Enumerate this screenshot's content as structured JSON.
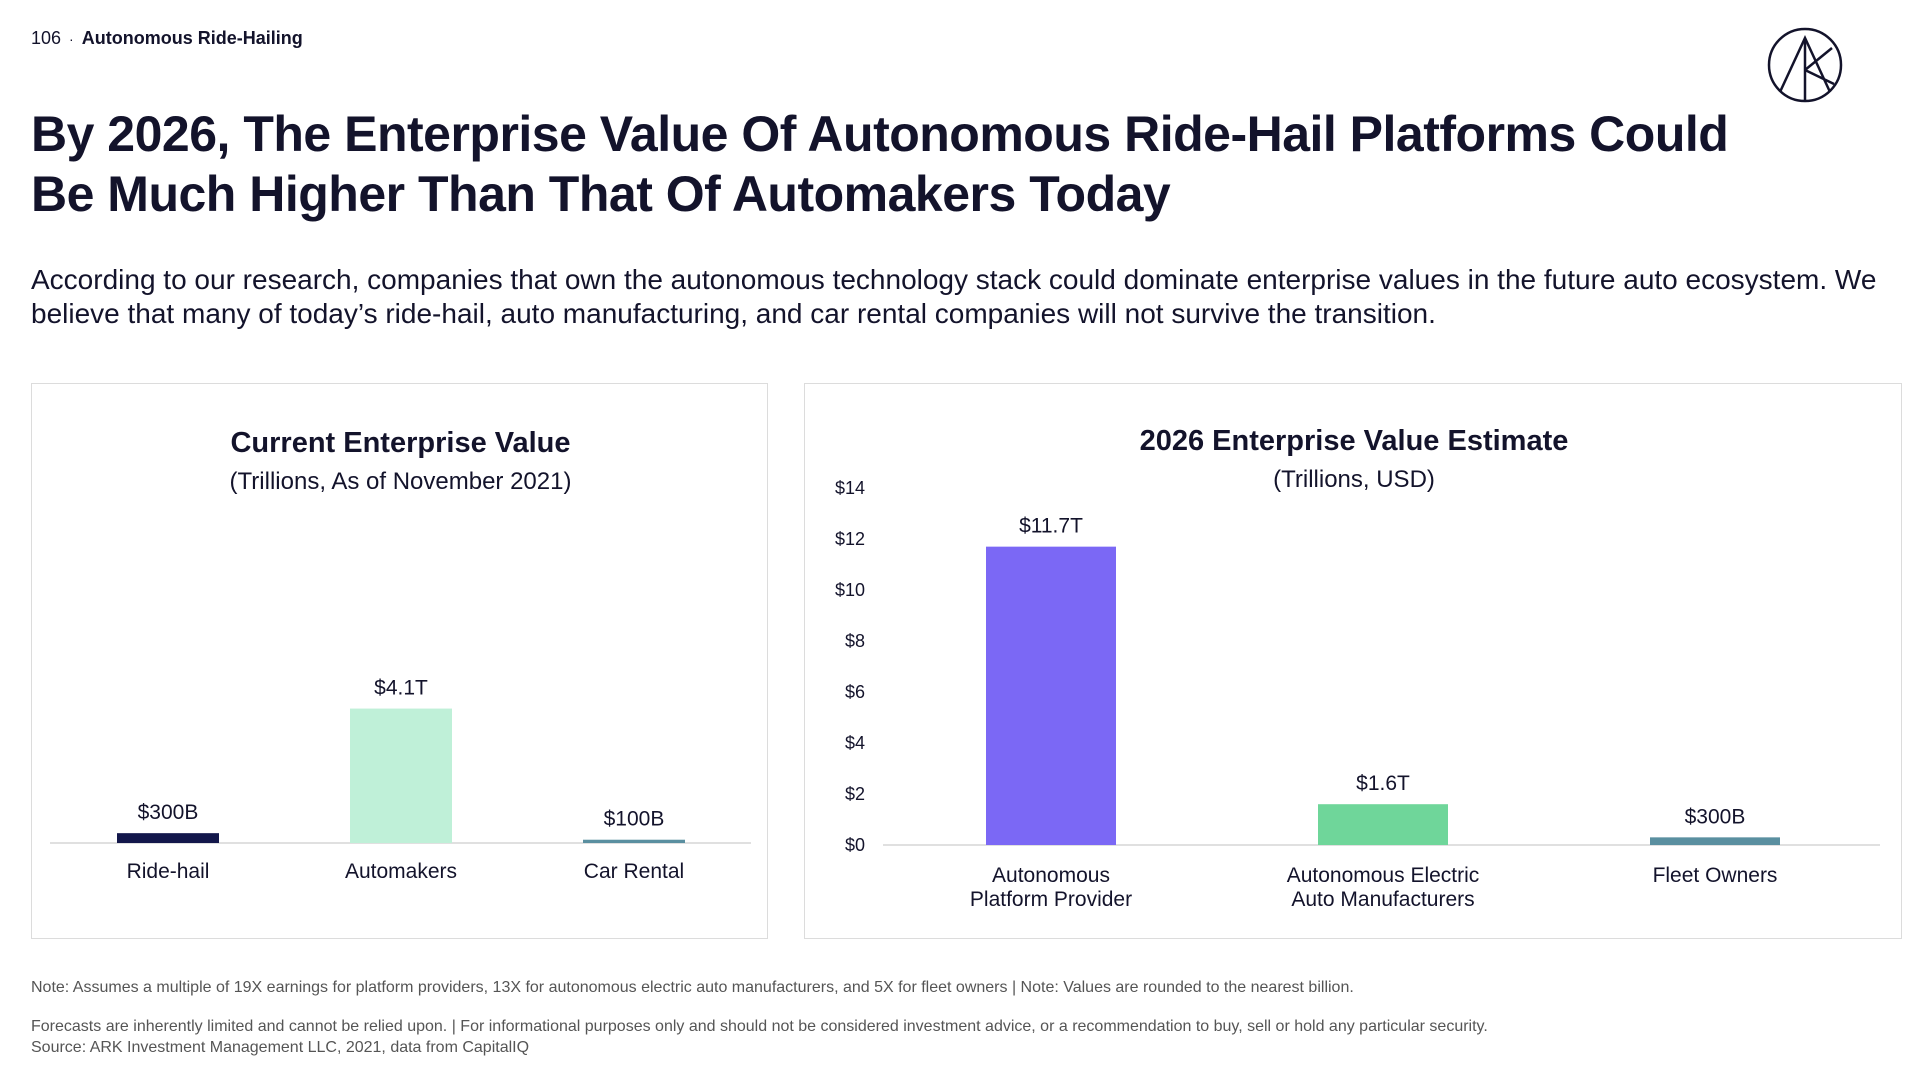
{
  "header": {
    "page_number": "106",
    "separator": "·",
    "section": "Autonomous Ride-Hailing"
  },
  "logo": {
    "icon": "ark-logo-icon"
  },
  "title": "By 2026, The Enterprise Value Of Autonomous Ride-Hail Platforms Could Be Much Higher Than That Of Automakers Today",
  "subtitle": "According to our research, companies that own the autonomous technology stack could dominate enterprise values in the future auto ecosystem. We believe that many of today’s ride-hail, auto manufacturing, and car rental companies will not survive the transition.",
  "chart_data": [
    {
      "type": "bar",
      "title": "Current Enterprise Value",
      "subtitle": "(Trillions, As of November 2021)",
      "categories": [
        "Ride-hail",
        "Automakers",
        "Car Rental"
      ],
      "values": [
        0.3,
        4.1,
        0.1
      ],
      "data_labels": [
        "$300B",
        "$4.1T",
        "$100B"
      ],
      "colors": [
        "#13174b",
        "#bff0d8",
        "#5a8fa0"
      ],
      "ylim": [
        0,
        14
      ],
      "grid": false,
      "legend": "none"
    },
    {
      "type": "bar",
      "title": "2026 Enterprise Value Estimate",
      "subtitle": "(Trillions, USD)",
      "categories": [
        "Autonomous Platform Provider",
        "Autonomous Electric Auto Manufacturers",
        "Fleet Owners"
      ],
      "category_lines": [
        [
          "Autonomous",
          "Platform Provider"
        ],
        [
          "Autonomous Electric",
          "Auto Manufacturers"
        ],
        [
          "Fleet Owners"
        ]
      ],
      "values": [
        11.7,
        1.6,
        0.3
      ],
      "data_labels": [
        "$11.7T",
        "$1.6T",
        "$300B"
      ],
      "colors": [
        "#7b68f5",
        "#6fd69a",
        "#5a8fa0"
      ],
      "ylim": [
        0,
        14
      ],
      "yticks": [
        0,
        2,
        4,
        6,
        8,
        10,
        12,
        14
      ],
      "ytick_labels": [
        "$0",
        "$2",
        "$4",
        "$6",
        "$8",
        "$10",
        "$12",
        "$14"
      ],
      "grid": false,
      "legend": "none"
    }
  ],
  "notes": {
    "note1": "Note: Assumes a multiple of 19X earnings for platform providers, 13X for autonomous electric auto manufacturers, and 5X for fleet owners | Note: Values are rounded to the nearest billion.",
    "note2": "Forecasts are inherently limited and cannot be relied upon. | For informational purposes only and should not be considered investment advice, or a recommendation to buy, sell or hold any particular security.",
    "note3": "Source: ARK Investment Management LLC, 2021, data from CapitalIQ"
  }
}
